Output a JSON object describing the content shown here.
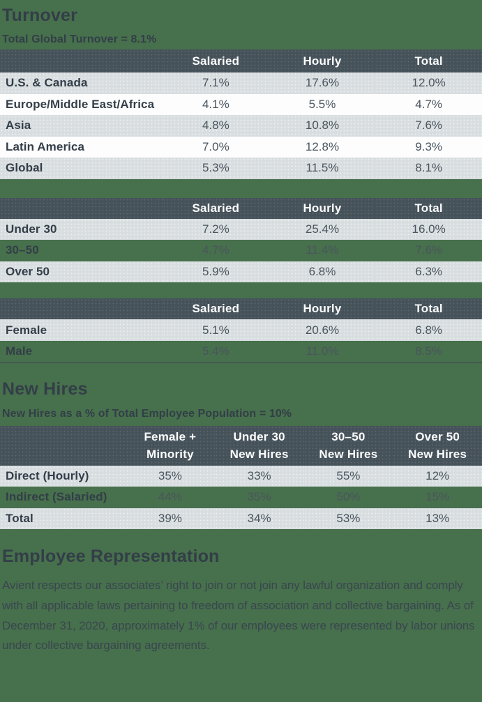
{
  "colors": {
    "page_bg": "#47704C",
    "table_header_bg": "#46525A",
    "row_gray_bg": "#D8DDE0",
    "row_white_bg": "#FDFDFE",
    "heading_text": "#333E48",
    "value_text": "#4A555E",
    "header_text": "#FBFCFD"
  },
  "turnover": {
    "title": "Turnover",
    "subtitle": "Total Global Turnover = 8.1%",
    "region_table": {
      "columns": [
        "Salaried",
        "Hourly",
        "Total"
      ],
      "rows": [
        {
          "label": "U.S. & Canada",
          "values": [
            "7.1%",
            "17.6%",
            "12.0%"
          ]
        },
        {
          "label": "Europe/Middle East/Africa",
          "values": [
            "4.1%",
            "5.5%",
            "4.7%"
          ]
        },
        {
          "label": "Asia",
          "values": [
            "4.8%",
            "10.8%",
            "7.6%"
          ]
        },
        {
          "label": "Latin America",
          "values": [
            "7.0%",
            "12.8%",
            "9.3%"
          ]
        },
        {
          "label": "Global",
          "values": [
            "5.3%",
            "11.5%",
            "8.1%"
          ]
        }
      ]
    },
    "age_table": {
      "columns": [
        "Salaried",
        "Hourly",
        "Total"
      ],
      "rows": [
        {
          "label": "Under 30",
          "values": [
            "7.2%",
            "25.4%",
            "16.0%"
          ]
        },
        {
          "label": "30–50",
          "values": [
            "4.7%",
            "11.4%",
            "7.6%"
          ]
        },
        {
          "label": "Over 50",
          "values": [
            "5.9%",
            "6.8%",
            "6.3%"
          ]
        }
      ]
    },
    "gender_table": {
      "columns": [
        "Salaried",
        "Hourly",
        "Total"
      ],
      "rows": [
        {
          "label": "Female",
          "values": [
            "5.1%",
            "20.6%",
            "6.8%"
          ]
        },
        {
          "label": "Male",
          "values": [
            "5.4%",
            "11.0%",
            "8.5%"
          ]
        }
      ]
    }
  },
  "new_hires": {
    "title": "New Hires",
    "subtitle": "New Hires as a % of Total Employee Population = 10%",
    "table": {
      "columns": [
        {
          "line1": "Female +",
          "line2": "Minority"
        },
        {
          "line1": "Under 30",
          "line2": "New Hires"
        },
        {
          "line1": "30–50",
          "line2": "New Hires"
        },
        {
          "line1": "Over 50",
          "line2": "New Hires"
        }
      ],
      "rows": [
        {
          "label": "Direct (Hourly)",
          "values": [
            "35%",
            "33%",
            "55%",
            "12%"
          ]
        },
        {
          "label": "Indirect (Salaried)",
          "values": [
            "44%",
            "35%",
            "50%",
            "15%"
          ]
        },
        {
          "label": "Total",
          "values": [
            "39%",
            "34%",
            "53%",
            "13%"
          ]
        }
      ]
    }
  },
  "employee_representation": {
    "title": "Employee Representation",
    "body": "Avient respects our associates’ right to join or not join any lawful organization and comply with all applicable laws pertaining to freedom of association and collective bargaining. As of December 31, 2020, approximately 1% of our employees were represented by labor unions under collective bargaining agreements."
  }
}
